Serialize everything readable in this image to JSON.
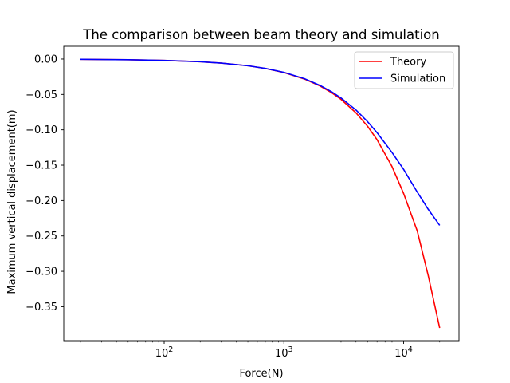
{
  "chart_data": {
    "type": "line",
    "title": "The comparison between beam theory and simulation",
    "xlabel": "Force(N)",
    "ylabel": "Maximum vertical displacement(m)",
    "xscale": "log",
    "xlim": [
      14.5,
      29000
    ],
    "ylim": [
      -0.398,
      0.018
    ],
    "x_ticks": [
      {
        "value": 100,
        "base": "10",
        "exp": "2"
      },
      {
        "value": 1000,
        "base": "10",
        "exp": "3"
      },
      {
        "value": 10000,
        "base": "10",
        "exp": "4"
      }
    ],
    "y_ticks": [
      0.0,
      -0.05,
      -0.1,
      -0.15,
      -0.2,
      -0.25,
      -0.3,
      -0.35
    ],
    "y_tick_labels": [
      "0.00",
      "−0.05",
      "−0.10",
      "−0.15",
      "−0.20",
      "−0.25",
      "−0.30",
      "−0.35"
    ],
    "grid": false,
    "legend_position": "top-right",
    "series": [
      {
        "name": "Theory",
        "color": "#ff0000",
        "x": [
          20,
          50,
          100,
          200,
          300,
          500,
          700,
          1000,
          1500,
          2000,
          2500,
          3000,
          4000,
          5000,
          6000,
          8000,
          10000,
          13000,
          16000,
          20000
        ],
        "y": [
          -0.0004,
          -0.001,
          -0.0019,
          -0.0038,
          -0.0057,
          -0.0095,
          -0.0133,
          -0.019,
          -0.0285,
          -0.038,
          -0.0475,
          -0.057,
          -0.076,
          -0.095,
          -0.114,
          -0.152,
          -0.19,
          -0.243,
          -0.305,
          -0.38
        ]
      },
      {
        "name": "Simulation",
        "color": "#0000ff",
        "x": [
          20,
          50,
          100,
          200,
          300,
          500,
          700,
          1000,
          1500,
          2000,
          2500,
          3000,
          4000,
          5000,
          6000,
          8000,
          10000,
          13000,
          16000,
          20000
        ],
        "y": [
          -0.0004,
          -0.001,
          -0.0019,
          -0.0038,
          -0.0057,
          -0.0095,
          -0.0132,
          -0.0188,
          -0.028,
          -0.0372,
          -0.0462,
          -0.055,
          -0.072,
          -0.0885,
          -0.104,
          -0.132,
          -0.156,
          -0.188,
          -0.212,
          -0.235
        ]
      }
    ]
  }
}
